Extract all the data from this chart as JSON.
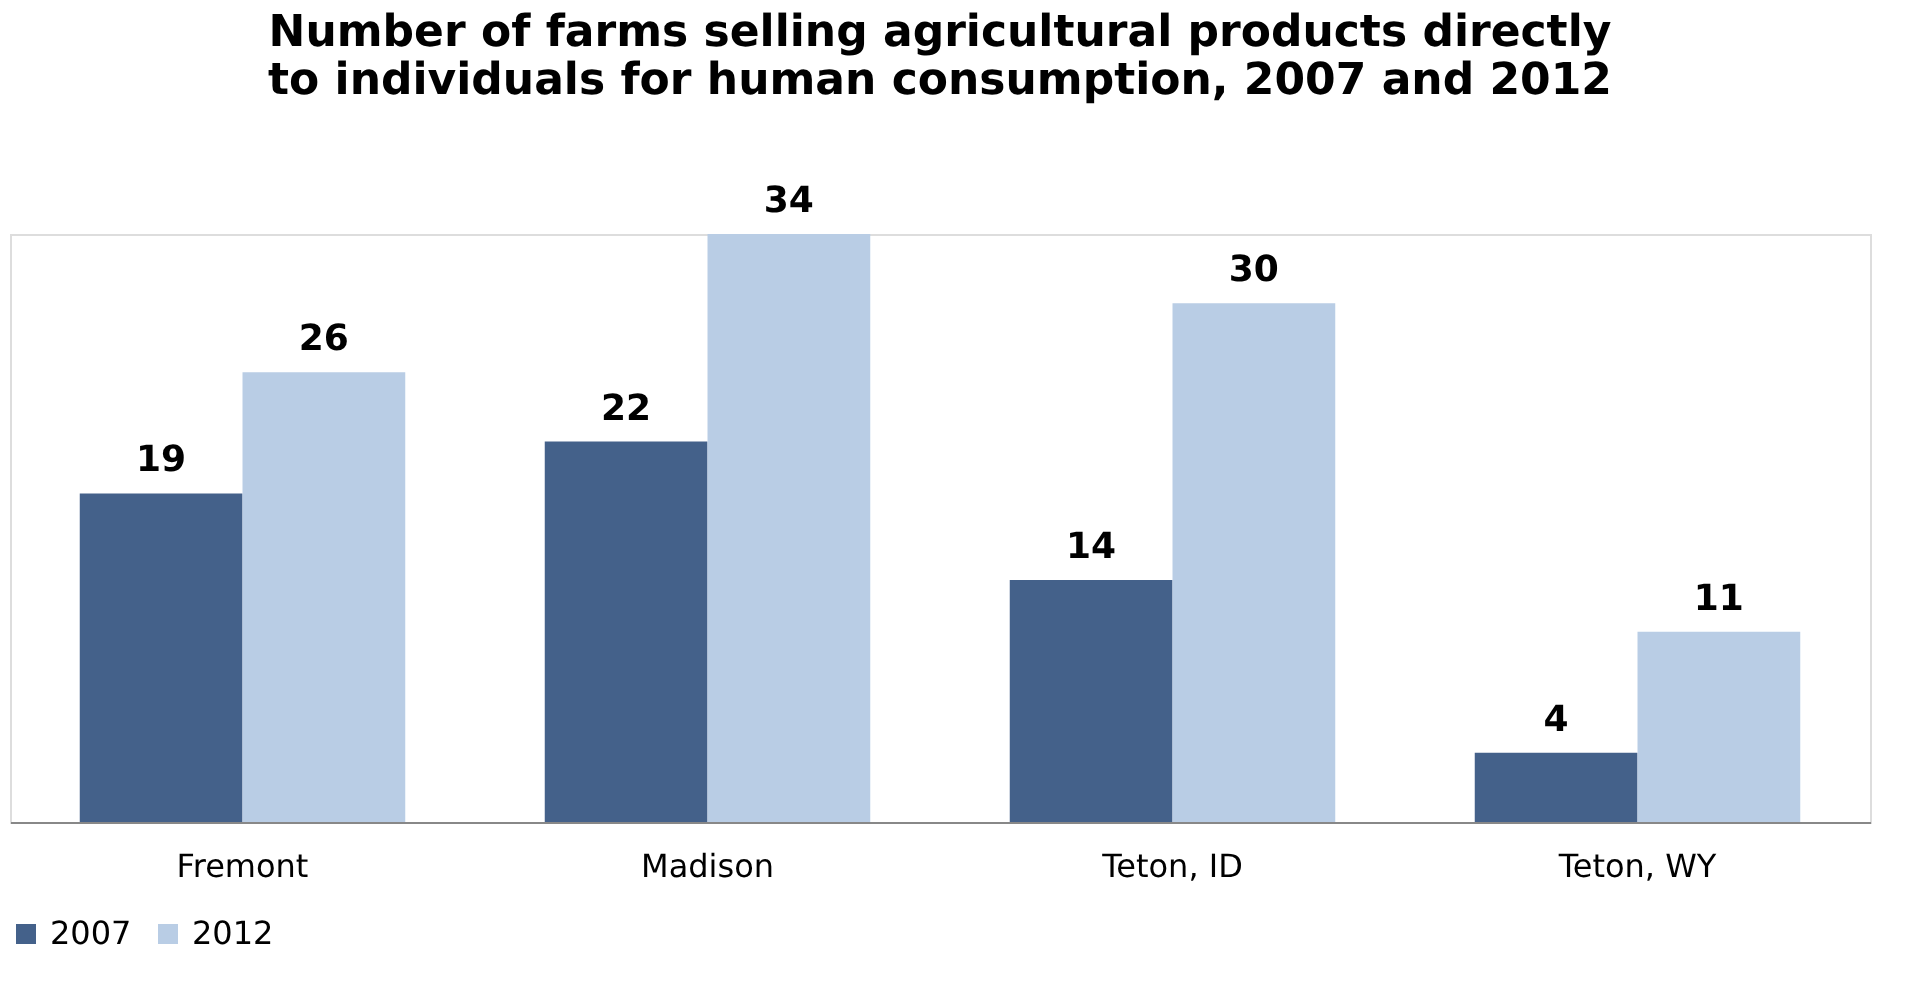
{
  "chart_data": {
    "type": "bar",
    "title": "Number of farms selling agricultural products directly\nto individuals for human consumption, 2007 and 2012",
    "categories": [
      "Fremont",
      "Madison",
      "Teton, ID",
      "Teton, WY"
    ],
    "series": [
      {
        "name": "2007",
        "color": "#44618a",
        "values": [
          19,
          22,
          14,
          4
        ]
      },
      {
        "name": "2012",
        "color": "#b9cde5",
        "values": [
          26,
          34,
          30,
          11
        ]
      }
    ],
    "data_labels": true,
    "legend": "bottom",
    "grid": false
  }
}
